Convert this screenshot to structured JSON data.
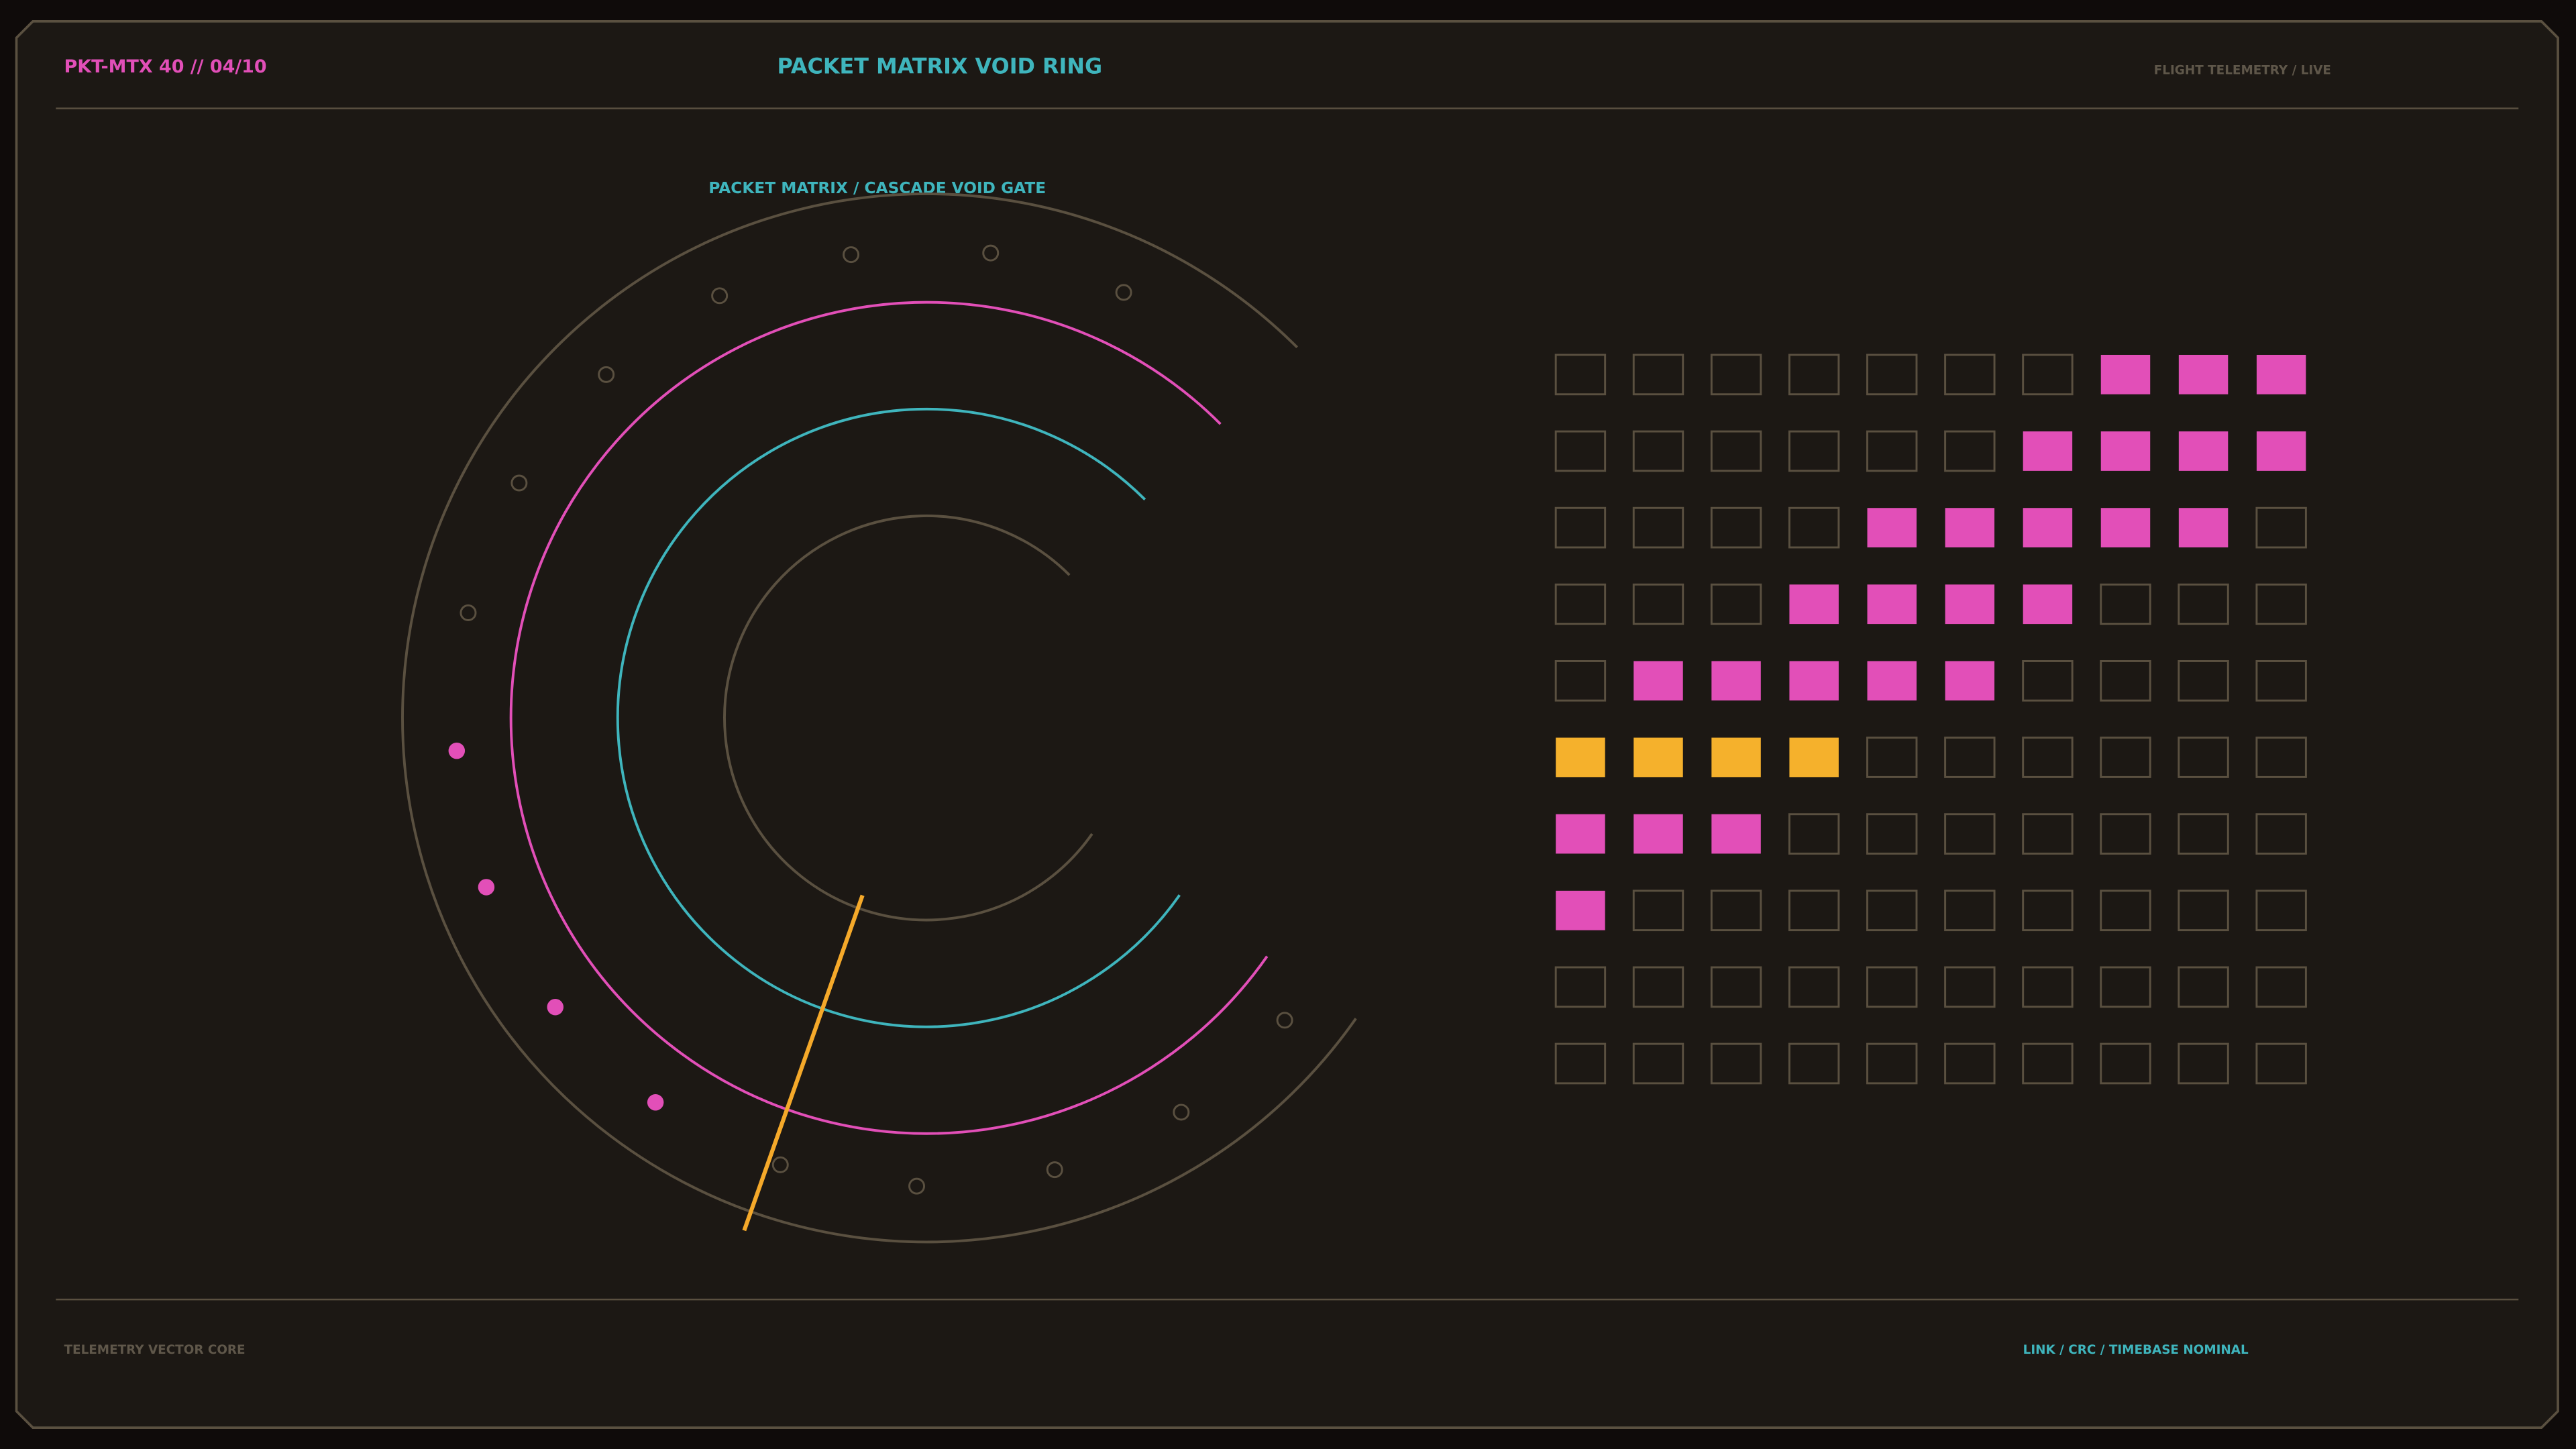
{
  "header": {
    "code": "PKT-MTX 40 // 04/10",
    "title": "PACKET MATRIX VOID RING",
    "status": "FLIGHT TELEMETRY / LIVE"
  },
  "panel": {
    "title": "PACKET MATRIX / CASCADE VOID GATE"
  },
  "footer": {
    "left": "TELEMETRY VECTOR CORE",
    "right": "LINK / CRC / TIMEBASE NOMINAL"
  }
}
